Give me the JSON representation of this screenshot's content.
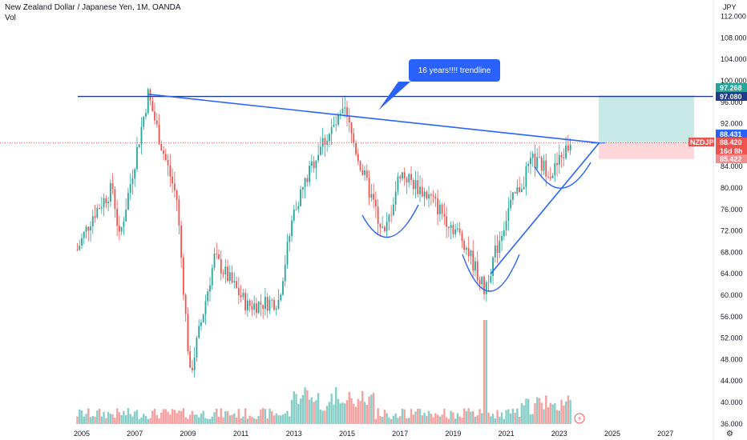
{
  "header": {
    "title": "New Zealand Dollar / Japanese Yen, 1M, OANDA",
    "volume_label": "Vol",
    "currency": "JPY"
  },
  "annotation": {
    "text": "16 years!!!! trendline"
  },
  "colors": {
    "up": "#26a69a",
    "down": "#ef5350",
    "trend": "#2962ff",
    "horizontal": "#1e3a8a",
    "profit_zone": "#b2dfdb",
    "loss_zone": "#ffcdd2"
  },
  "price_labels": {
    "target": "97.268",
    "level": "97.080",
    "trend_end": "88.431",
    "symbol": "NZDJPY",
    "last": "88.420",
    "countdown": "16d 8h",
    "stop": "85.422"
  },
  "chart_data": {
    "type": "candlestick",
    "symbol": "NZDJPY",
    "interval": "1M",
    "y_ticks": [
      "36.000",
      "40.000",
      "44.000",
      "48.000",
      "52.000",
      "56.000",
      "60.000",
      "64.000",
      "68.000",
      "72.000",
      "76.000",
      "80.000",
      "84.000",
      "92.000",
      "96.000",
      "100.000",
      "104.000",
      "108.000",
      "112.000"
    ],
    "x_ticks": [
      "2005",
      "2007",
      "2009",
      "2011",
      "2013",
      "2015",
      "2017",
      "2019",
      "2021",
      "2023",
      "2025",
      "2027"
    ],
    "ylim": [
      36,
      115
    ],
    "key_points": [
      {
        "date": "2004-11",
        "close": 68.5
      },
      {
        "date": "2005-06",
        "close": 75.0
      },
      {
        "date": "2006-03",
        "close": 80.0
      },
      {
        "date": "2006-06",
        "close": 70.5
      },
      {
        "date": "2007-07",
        "close": 97.5
      },
      {
        "date": "2008-01",
        "close": 88.0
      },
      {
        "date": "2008-08",
        "close": 78.0
      },
      {
        "date": "2009-02",
        "close": 45.0
      },
      {
        "date": "2010-01",
        "close": 67.0
      },
      {
        "date": "2011-04",
        "close": 58.0
      },
      {
        "date": "2012-06",
        "close": 59.0
      },
      {
        "date": "2013-01",
        "close": 76.0
      },
      {
        "date": "2014-01",
        "close": 88.0
      },
      {
        "date": "2014-12",
        "close": 94.0
      },
      {
        "date": "2015-08",
        "close": 83.0
      },
      {
        "date": "2016-06",
        "close": 71.0
      },
      {
        "date": "2017-01",
        "close": 83.0
      },
      {
        "date": "2018-03",
        "close": 78.0
      },
      {
        "date": "2019-06",
        "close": 70.0
      },
      {
        "date": "2020-03",
        "close": 61.0
      },
      {
        "date": "2021-02",
        "close": 76.0
      },
      {
        "date": "2022-01",
        "close": 85.0
      },
      {
        "date": "2022-10",
        "close": 83.0
      },
      {
        "date": "2023-06",
        "close": 88.4
      }
    ],
    "lines": [
      {
        "name": "horizontal resistance",
        "y": 97.08
      },
      {
        "name": "16-year trendline",
        "from": {
          "date": "2007-07",
          "y": 97.5
        },
        "to": {
          "date": "2024-07",
          "y": 88.4
        }
      },
      {
        "name": "rising trendline",
        "from": {
          "date": "2020-06",
          "y": 64.0
        },
        "to": {
          "date": "2024-07",
          "y": 88.4
        }
      }
    ],
    "position": {
      "entry": 88.42,
      "target": 97.268,
      "stop": 85.422
    }
  }
}
